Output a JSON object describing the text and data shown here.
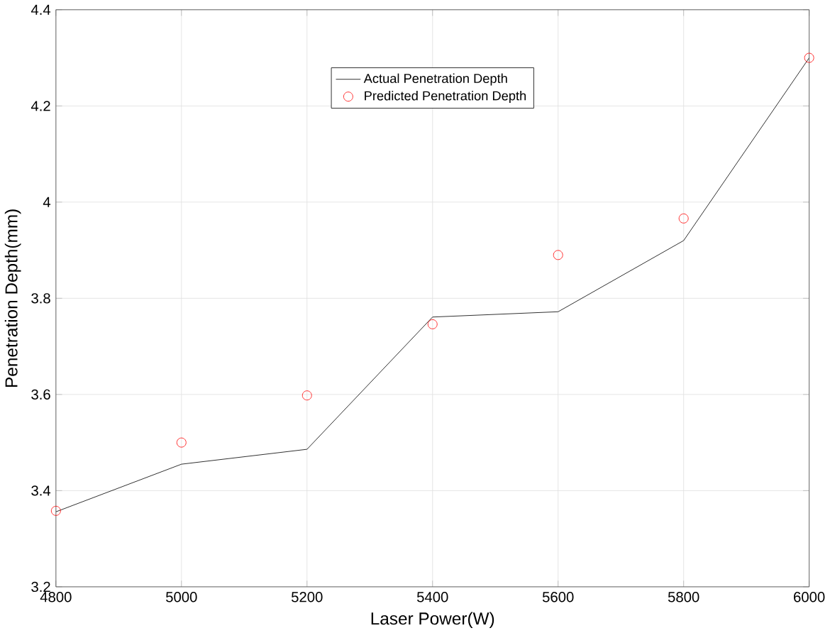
{
  "chart_data": {
    "type": "line",
    "xlabel": "Laser Power(W)",
    "ylabel": "Penetration Depth(mm)",
    "x": [
      4800,
      5000,
      5200,
      5400,
      5600,
      5800,
      6000
    ],
    "series": [
      {
        "name": "Actual Penetration Depth",
        "color": "#000000",
        "marker": "none",
        "values": [
          3.356,
          3.455,
          3.486,
          3.761,
          3.772,
          3.92,
          4.3
        ]
      },
      {
        "name": "Predicted Penetration Depth",
        "type": "scatter",
        "color": "#ff0000",
        "marker": "circle",
        "values": [
          3.358,
          3.5,
          3.598,
          3.746,
          3.89,
          3.966,
          4.3
        ]
      }
    ],
    "xlim": [
      4800,
      6000
    ],
    "ylim": [
      3.2,
      4.4
    ],
    "xticks": [
      4800,
      5000,
      5200,
      5400,
      5600,
      5800,
      6000
    ],
    "yticks": [
      3.2,
      3.4,
      3.6,
      3.8,
      4,
      4.2,
      4.4
    ],
    "grid": true,
    "legend": "top"
  }
}
